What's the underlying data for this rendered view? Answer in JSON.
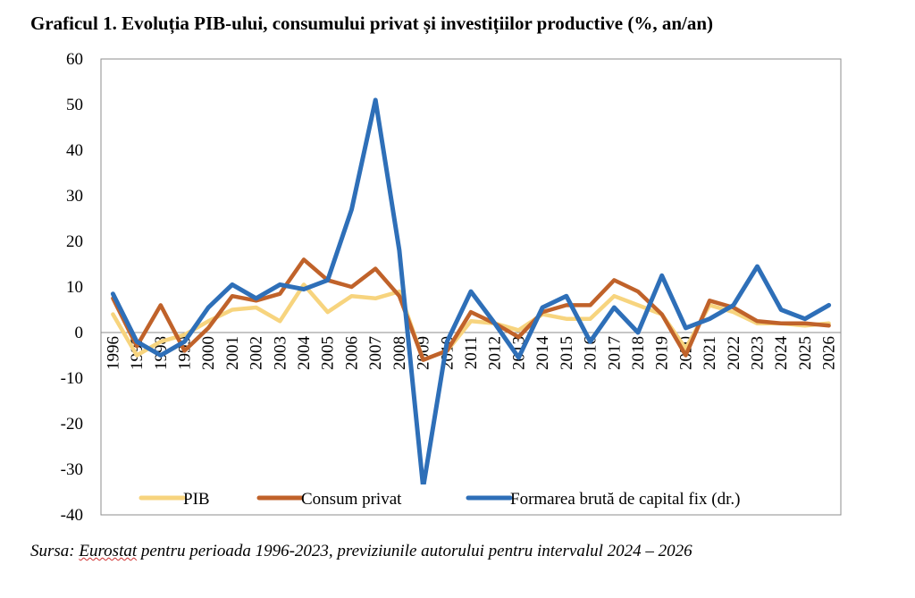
{
  "title": "Graficul 1. Evoluția PIB-ului, consumului privat și investițiilor productive (%, an/an)",
  "source": {
    "prefix": "Sursa: ",
    "underlined": "Eurostat",
    "rest": " pentru perioada 1996-2023, previziunile autorului pentru intervalul 2024 – 2026"
  },
  "chart_data": {
    "type": "line",
    "x": [
      "1996",
      "1997",
      "1998",
      "1999",
      "2000",
      "2001",
      "2002",
      "2003",
      "2004",
      "2005",
      "2006",
      "2007",
      "2008",
      "2009",
      "2010",
      "2011",
      "2012",
      "2013",
      "2014",
      "2015",
      "2016",
      "2017",
      "2018",
      "2019",
      "2020",
      "2021",
      "2022",
      "2023",
      "2024",
      "2025",
      "2026"
    ],
    "ylim": [
      -40,
      60
    ],
    "yticks": [
      60,
      50,
      40,
      30,
      20,
      10,
      0,
      -10,
      -20,
      -30,
      -40
    ],
    "grid": false,
    "legend_position": "bottom",
    "series": [
      {
        "name": "PIB",
        "color": "#f7d47e",
        "values": [
          4.0,
          -5.0,
          -2.0,
          -0.5,
          2.5,
          5.0,
          5.5,
          2.5,
          10.5,
          4.5,
          8.0,
          7.5,
          9.0,
          -6.0,
          -4.0,
          2.5,
          2.0,
          0.5,
          4.0,
          3.0,
          3.0,
          8.0,
          6.0,
          4.0,
          -3.5,
          6.0,
          4.5,
          2.0,
          2.0,
          1.5,
          2.0
        ]
      },
      {
        "name": "Consum privat",
        "color": "#c0622a",
        "values": [
          7.5,
          -3.0,
          6.0,
          -4.0,
          1.0,
          8.0,
          7.0,
          8.5,
          16.0,
          11.5,
          10.0,
          14.0,
          8.0,
          -6.0,
          -4.0,
          4.5,
          2.0,
          -1.0,
          4.5,
          6.0,
          6.0,
          11.5,
          9.0,
          4.0,
          -5.0,
          7.0,
          5.5,
          2.5,
          2.0,
          2.0,
          1.5
        ]
      },
      {
        "name": "Formarea brută de capital fix (dr.)",
        "color": "#2e6fb8",
        "values": [
          8.5,
          -2.0,
          -5.0,
          -2.0,
          5.5,
          10.5,
          7.5,
          10.5,
          9.5,
          11.5,
          27.0,
          51.0,
          18.0,
          -34.0,
          -2.0,
          9.0,
          2.0,
          -5.5,
          5.5,
          8.0,
          -2.0,
          5.5,
          0.0,
          12.5,
          1.0,
          3.0,
          6.0,
          14.5,
          5.0,
          3.0,
          6.0
        ]
      }
    ]
  }
}
